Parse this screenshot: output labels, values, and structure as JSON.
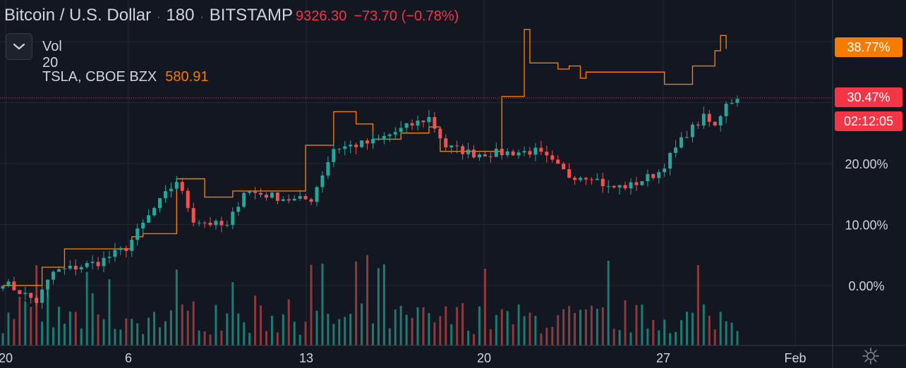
{
  "header": {
    "symbol": "Bitcoin / U.S. Dollar",
    "interval": "180",
    "exchange": "BITSTAMP",
    "price": "9326.30",
    "change": "−73.70 (−0.78%)",
    "separator": "·"
  },
  "legend": {
    "volume_label": "Vol 20",
    "compare_symbol": "TSLA, CBOE BZX",
    "compare_value": "580.91"
  },
  "price_scale": {
    "badge_compare": "38.77%",
    "badge_current": "30.47%",
    "countdown": "02:12:05"
  },
  "chart_data": {
    "type": "candlestick",
    "x_tick_labels": [
      "20",
      "6",
      "13",
      "20",
      "27",
      "Feb"
    ],
    "y_tick_labels": [
      "20.00%",
      "10.00%",
      "0.00%"
    ],
    "y_scale": "percent",
    "ylim": [
      -9,
      46
    ],
    "grid": true,
    "colors": {
      "up": "#26a69a",
      "down": "#ef5350",
      "compare_line": "#f57c00",
      "vol_up": "#1f7a72",
      "vol_down": "#8c3a3c"
    },
    "series": [
      {
        "name": "Bitcoin / U.S. Dollar",
        "kind": "candles",
        "close_anchors": [
          [
            0,
            0.6
          ],
          [
            6,
            -2.6
          ],
          [
            9,
            2.2
          ],
          [
            17,
            3.8
          ],
          [
            22,
            6.2
          ],
          [
            27,
            12.6
          ],
          [
            31,
            17.2
          ],
          [
            34,
            10.8
          ],
          [
            40,
            9.6
          ],
          [
            43,
            15.5
          ],
          [
            52,
            14.0
          ],
          [
            55,
            14.2
          ],
          [
            59,
            22.5
          ],
          [
            66,
            23.5
          ],
          [
            72,
            26.0
          ],
          [
            76,
            27.5
          ],
          [
            79,
            22.8
          ],
          [
            84,
            21.6
          ],
          [
            90,
            21.8
          ],
          [
            95,
            22.0
          ],
          [
            97,
            20.8
          ],
          [
            101,
            18.0
          ],
          [
            105,
            18.0
          ],
          [
            108,
            16.0
          ],
          [
            112,
            16.4
          ],
          [
            117,
            18.6
          ],
          [
            122,
            25.0
          ],
          [
            125,
            27.5
          ],
          [
            127,
            26.0
          ],
          [
            129,
            30.2
          ],
          [
            131,
            30.5
          ]
        ]
      },
      {
        "name": "TSLA, CBOE BZX",
        "kind": "line",
        "step_anchors": [
          [
            0,
            0
          ],
          [
            6,
            0
          ],
          [
            7,
            3.0
          ],
          [
            11,
            6.0
          ],
          [
            22,
            6.0
          ],
          [
            23,
            8.0
          ],
          [
            25,
            8.5
          ],
          [
            31,
            17.5
          ],
          [
            34,
            17.5
          ],
          [
            36,
            14.5
          ],
          [
            41,
            15.5
          ],
          [
            51,
            15.5
          ],
          [
            54,
            23.0
          ],
          [
            59,
            28.5
          ],
          [
            63,
            26.5
          ],
          [
            66,
            24.0
          ],
          [
            71,
            25.0
          ],
          [
            76,
            26.0
          ],
          [
            78,
            22.0
          ],
          [
            83,
            22.0
          ],
          [
            87,
            22.0
          ],
          [
            89,
            31.0
          ],
          [
            92,
            31.0
          ],
          [
            93,
            42.0
          ],
          [
            94,
            36.5
          ],
          [
            98,
            36.5
          ],
          [
            99,
            35.5
          ],
          [
            101,
            36.0
          ],
          [
            103,
            34.0
          ],
          [
            104,
            35.0
          ],
          [
            117,
            35.0
          ],
          [
            118,
            33.0
          ],
          [
            120,
            33.0
          ],
          [
            123,
            36.0
          ],
          [
            126,
            36.0
          ],
          [
            127,
            38.5
          ],
          [
            128,
            41.0
          ],
          [
            129,
            38.8
          ]
        ]
      }
    ],
    "volume": {
      "bars": 132,
      "note_max_relative": 1.0
    }
  }
}
